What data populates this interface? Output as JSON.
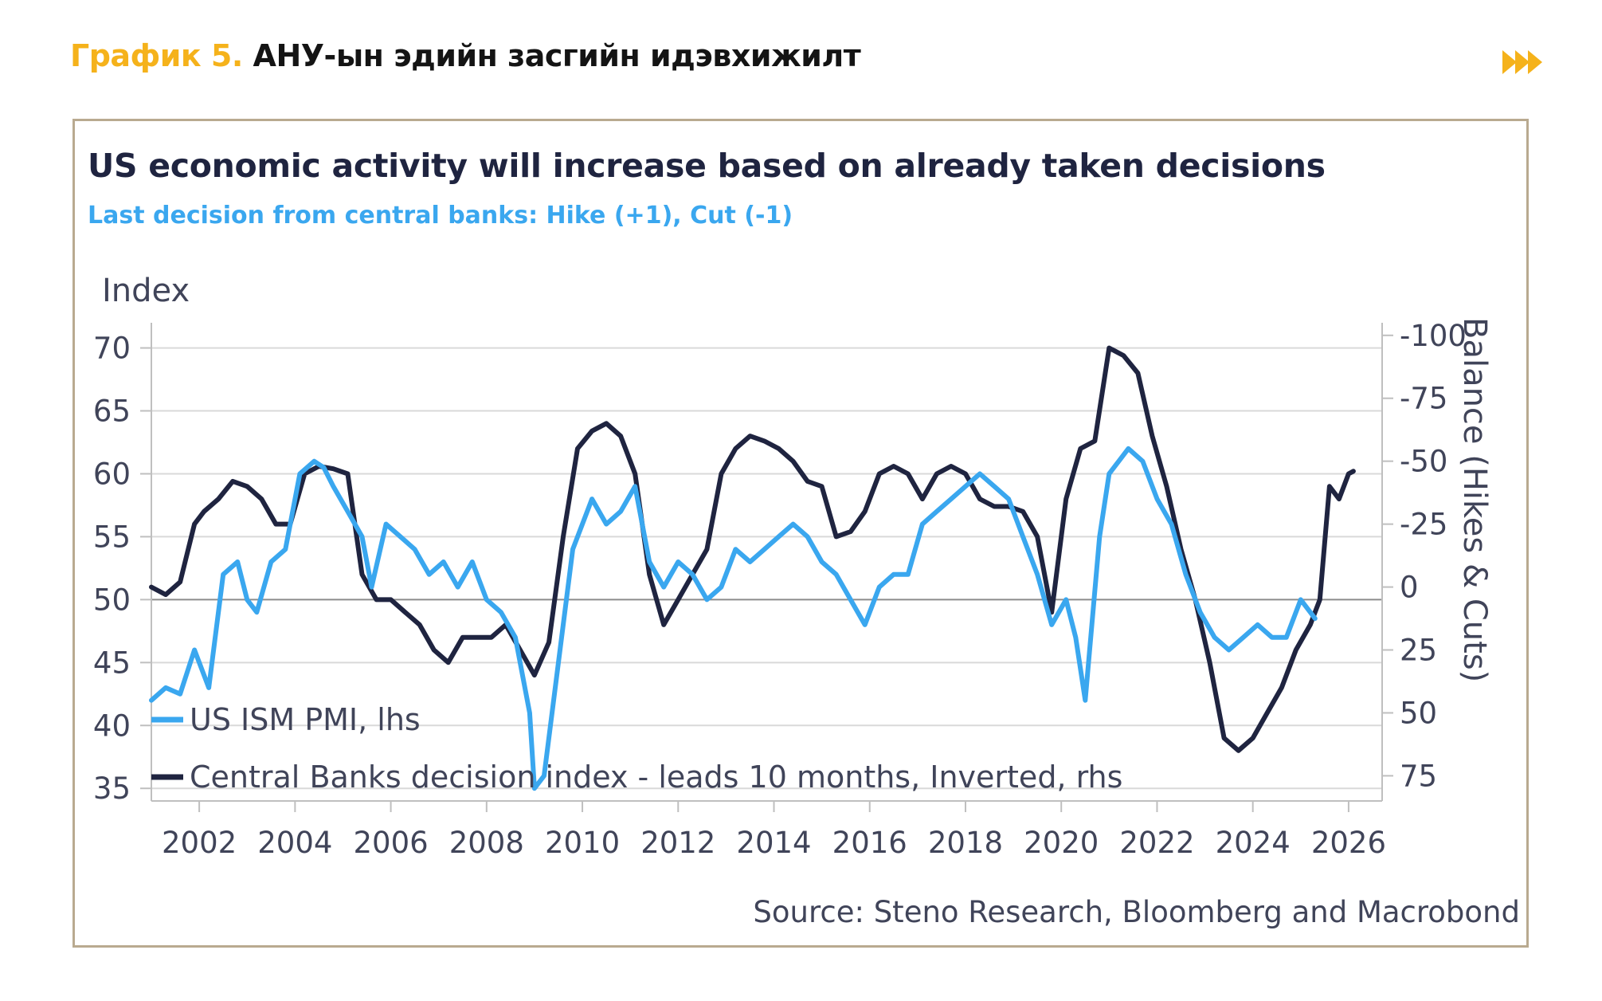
{
  "header": {
    "prefix": "График 5.",
    "title": "АНУ-ын эдийн засгийн идэвхижилт",
    "next_icon": "fast-forward-icon",
    "accent_color": "#f5b21b"
  },
  "chart_data": {
    "type": "line",
    "title": "US economic activity will increase based on already taken decisions",
    "subtitle": "Last decision from central banks: Hike (+1), Cut (-1)",
    "ylabel": "Index",
    "ylabel_right": "Balance (Hikes & Cuts)",
    "xlim": [
      2001,
      2026.7
    ],
    "ylim": [
      34,
      72
    ],
    "ylim_right": [
      85,
      -105
    ],
    "right_axis_inverted": true,
    "x_ticks": [
      2002,
      2004,
      2006,
      2008,
      2010,
      2012,
      2014,
      2016,
      2018,
      2020,
      2022,
      2024,
      2026
    ],
    "x_tick_labels": [
      "2002",
      "2004",
      "2006",
      "2008",
      "2010",
      "2012",
      "2014",
      "2016",
      "2018",
      "2020",
      "2022",
      "2024",
      "2026"
    ],
    "y_ticks": [
      35,
      40,
      45,
      50,
      55,
      60,
      65,
      70
    ],
    "y_tick_labels": [
      "35",
      "40",
      "45",
      "50",
      "55",
      "60",
      "65",
      "70"
    ],
    "y_right_ticks": [
      -100,
      -75,
      -50,
      -25,
      0,
      25,
      50,
      75
    ],
    "y_right_tick_labels": [
      "-100",
      "-75",
      "-50",
      "-25",
      "0",
      "25",
      "50",
      "75"
    ],
    "grid": true,
    "legend_position": "bottom-left",
    "source": "Source: Steno Research, Bloomberg and Macrobond",
    "series": [
      {
        "name": "US ISM PMI, lhs",
        "axis": "left",
        "color": "#3aa7ef",
        "x": [
          2001.0,
          2001.3,
          2001.6,
          2001.9,
          2002.2,
          2002.5,
          2002.8,
          2003.0,
          2003.2,
          2003.5,
          2003.8,
          2004.1,
          2004.4,
          2004.6,
          2004.8,
          2005.1,
          2005.4,
          2005.6,
          2005.9,
          2006.2,
          2006.5,
          2006.8,
          2007.1,
          2007.4,
          2007.7,
          2008.0,
          2008.3,
          2008.6,
          2008.9,
          2009.0,
          2009.2,
          2009.5,
          2009.8,
          2010.0,
          2010.2,
          2010.5,
          2010.8,
          2011.1,
          2011.4,
          2011.7,
          2012.0,
          2012.3,
          2012.6,
          2012.9,
          2013.2,
          2013.5,
          2013.8,
          2014.1,
          2014.4,
          2014.7,
          2015.0,
          2015.3,
          2015.6,
          2015.9,
          2016.2,
          2016.5,
          2016.8,
          2017.1,
          2017.4,
          2017.7,
          2018.0,
          2018.3,
          2018.6,
          2018.9,
          2019.2,
          2019.5,
          2019.8,
          2020.1,
          2020.3,
          2020.5,
          2020.8,
          2021.0,
          2021.2,
          2021.4,
          2021.7,
          2022.0,
          2022.3,
          2022.6,
          2022.9,
          2023.2,
          2023.5,
          2023.8,
          2024.1,
          2024.4,
          2024.7,
          2025.0,
          2025.3
        ],
        "values": [
          42,
          43,
          42.5,
          46,
          43,
          52,
          53,
          50,
          49,
          53,
          54,
          60,
          61,
          60.5,
          59,
          57,
          55,
          51,
          56,
          55,
          54,
          52,
          53,
          51,
          53,
          50,
          49,
          47,
          41,
          35,
          36,
          45,
          54,
          56,
          58,
          56,
          57,
          59,
          53,
          51,
          53,
          52,
          50,
          51,
          54,
          53,
          54,
          55,
          56,
          55,
          53,
          52,
          50,
          48,
          51,
          52,
          52,
          56,
          57,
          58,
          59,
          60,
          59,
          58,
          55,
          52,
          48,
          50,
          47,
          42,
          55,
          60,
          61,
          62,
          61,
          58,
          56,
          52,
          49,
          47,
          46,
          47,
          48,
          47,
          47,
          50,
          48.5
        ]
      },
      {
        "name": "Central Banks decision index -  leads 10 months, Inverted, rhs",
        "axis": "right",
        "color": "#1f2440",
        "x": [
          2001.0,
          2001.3,
          2001.6,
          2001.9,
          2002.1,
          2002.4,
          2002.7,
          2003.0,
          2003.3,
          2003.6,
          2003.9,
          2004.2,
          2004.5,
          2004.8,
          2005.1,
          2005.4,
          2005.7,
          2006.0,
          2006.3,
          2006.6,
          2006.9,
          2007.2,
          2007.5,
          2007.8,
          2008.1,
          2008.4,
          2008.7,
          2009.0,
          2009.3,
          2009.6,
          2009.9,
          2010.2,
          2010.5,
          2010.8,
          2011.1,
          2011.4,
          2011.7,
          2012.0,
          2012.3,
          2012.6,
          2012.9,
          2013.2,
          2013.5,
          2013.8,
          2014.1,
          2014.4,
          2014.7,
          2015.0,
          2015.3,
          2015.6,
          2015.9,
          2016.2,
          2016.5,
          2016.8,
          2017.1,
          2017.4,
          2017.7,
          2018.0,
          2018.3,
          2018.6,
          2018.9,
          2019.2,
          2019.5,
          2019.8,
          2020.1,
          2020.4,
          2020.7,
          2021.0,
          2021.3,
          2021.6,
          2021.9,
          2022.2,
          2022.5,
          2022.8,
          2023.1,
          2023.4,
          2023.7,
          2024.0,
          2024.3,
          2024.6,
          2024.9,
          2025.2,
          2025.4,
          2025.6,
          2025.8,
          2026.0,
          2026.1
        ],
        "values": [
          0,
          3,
          -2,
          -25,
          -30,
          -35,
          -42,
          -40,
          -35,
          -25,
          -25,
          -45,
          -48,
          -47,
          -45,
          -5,
          5,
          5,
          10,
          15,
          25,
          30,
          20,
          20,
          20,
          15,
          25,
          35,
          22,
          -20,
          -55,
          -62,
          -65,
          -60,
          -45,
          -5,
          15,
          5,
          -5,
          -15,
          -45,
          -55,
          -60,
          -58,
          -55,
          -50,
          -42,
          -40,
          -20,
          -22,
          -30,
          -45,
          -48,
          -45,
          -35,
          -45,
          -48,
          -45,
          -35,
          -32,
          -32,
          -30,
          -20,
          10,
          -35,
          -55,
          -58,
          -95,
          -92,
          -85,
          -60,
          -40,
          -15,
          5,
          30,
          60,
          65,
          60,
          50,
          40,
          25,
          15,
          5,
          -40,
          -35,
          -45,
          -46
        ]
      }
    ]
  }
}
